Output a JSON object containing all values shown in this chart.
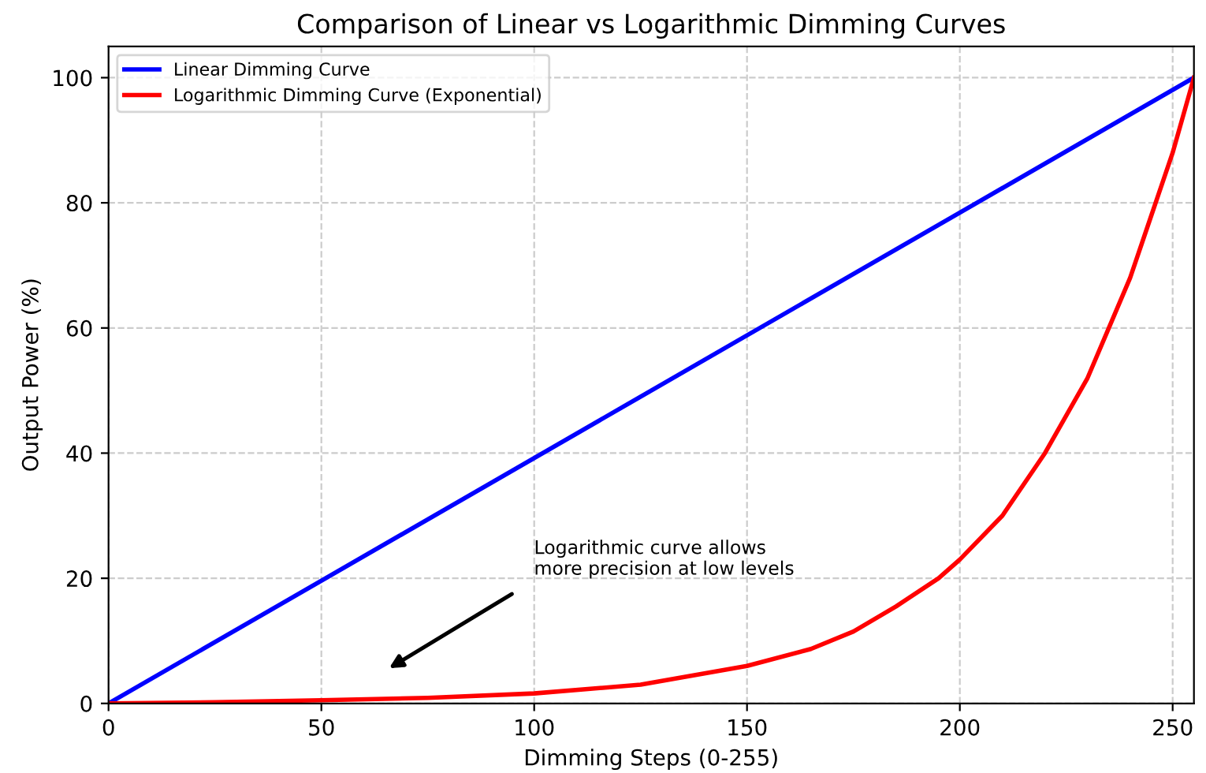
{
  "chart_data": {
    "type": "line",
    "title": "Comparison of Linear vs Logarithmic Dimming Curves",
    "xlabel": "Dimming Steps (0-255)",
    "ylabel": "Output Power (%)",
    "series": [
      {
        "name": "Linear Dimming Curve",
        "color": "#0000ff",
        "x": [
          0,
          255
        ],
        "values": [
          0,
          100
        ]
      },
      {
        "name": "Logarithmic Dimming Curve (Exponential)",
        "color": "#ff0000",
        "x": [
          0,
          25,
          50,
          75,
          100,
          125,
          150,
          165,
          175,
          185,
          195,
          200,
          210,
          220,
          230,
          235,
          240,
          245,
          250,
          255
        ],
        "values": [
          0,
          0.2,
          0.5,
          0.9,
          1.6,
          3,
          6,
          8.7,
          11.5,
          15.5,
          20,
          23,
          30,
          40,
          52,
          60,
          68,
          78,
          88,
          100
        ]
      }
    ],
    "xlim": [
      0,
      255
    ],
    "ylim": [
      0,
      105
    ],
    "xticks": [
      0,
      50,
      100,
      150,
      200,
      250
    ],
    "yticks": [
      0,
      20,
      40,
      60,
      80,
      100
    ],
    "grid": true,
    "legend": "top left",
    "line_style": "solid",
    "marker": "none",
    "annotations": [
      "Logarithmic curve allows\nmore precision at low levels"
    ]
  }
}
